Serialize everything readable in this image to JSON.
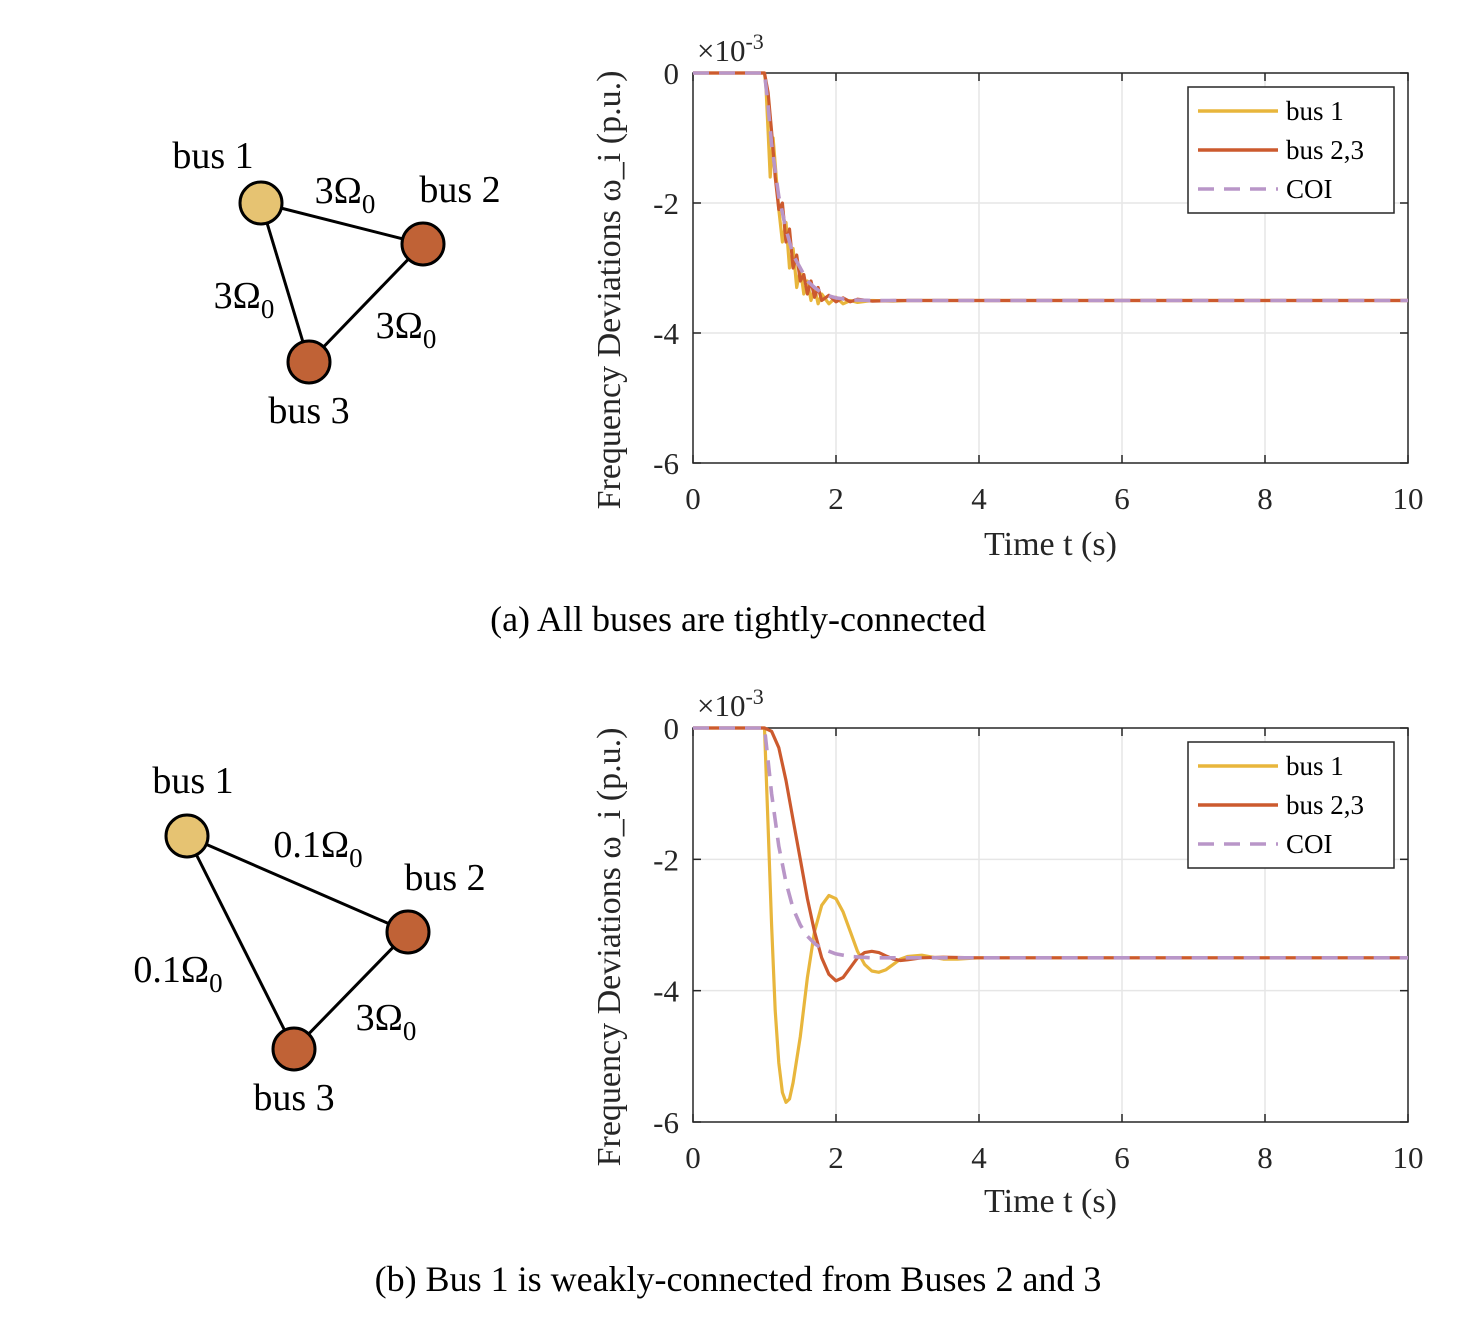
{
  "colors": {
    "bus1": "#e8b63c",
    "bus23": "#cc5a2e",
    "coi": "#b996c8",
    "node1": "#e6c372",
    "node23": "#c06236",
    "grid": "#e6e6e6"
  },
  "panels": [
    {
      "caption": "(a)  All buses are tightly-connected",
      "graph": {
        "nodes": [
          "bus 1",
          "bus 2",
          "bus 3"
        ],
        "edges": [
          {
            "from": "bus 1",
            "to": "bus 2",
            "label": "3Ω",
            "sub": "0"
          },
          {
            "from": "bus 1",
            "to": "bus 3",
            "label": "3Ω",
            "sub": "0"
          },
          {
            "from": "bus 2",
            "to": "bus 3",
            "label": "3Ω",
            "sub": "0"
          }
        ]
      }
    },
    {
      "caption": "(b)  Bus 1 is weakly-connected from Buses 2 and 3",
      "graph": {
        "nodes": [
          "bus 1",
          "bus 2",
          "bus 3"
        ],
        "edges": [
          {
            "from": "bus 1",
            "to": "bus 2",
            "label": "0.1Ω",
            "sub": "0"
          },
          {
            "from": "bus 1",
            "to": "bus 3",
            "label": "0.1Ω",
            "sub": "0"
          },
          {
            "from": "bus 2",
            "to": "bus 3",
            "label": "3Ω",
            "sub": "0"
          }
        ]
      }
    }
  ],
  "chart_data": [
    {
      "type": "line",
      "xlabel": "Time t (s)",
      "ylabel": "Frequency Deviations ω_i (p.u.)",
      "y_exponent": "×10-3",
      "xlim": [
        0,
        10
      ],
      "ylim": [
        -6,
        0
      ],
      "xticks": [
        0,
        2,
        4,
        6,
        8,
        10
      ],
      "yticks": [
        0,
        -2,
        -4,
        -6
      ],
      "grid": true,
      "legend": "top-right",
      "series": [
        {
          "name": "bus 1",
          "style": "solid",
          "x": [
            0,
            1.0,
            1.02,
            1.05,
            1.08,
            1.12,
            1.15,
            1.2,
            1.25,
            1.3,
            1.35,
            1.4,
            1.45,
            1.5,
            1.55,
            1.6,
            1.65,
            1.7,
            1.75,
            1.8,
            1.9,
            2.0,
            2.1,
            2.2,
            2.3,
            2.5,
            2.8,
            3.0,
            10
          ],
          "y": [
            0,
            0,
            -0.2,
            -0.9,
            -1.6,
            -1.0,
            -1.4,
            -2.1,
            -2.6,
            -2.3,
            -3.0,
            -2.7,
            -3.3,
            -3.0,
            -3.4,
            -3.2,
            -3.5,
            -3.3,
            -3.55,
            -3.4,
            -3.55,
            -3.45,
            -3.55,
            -3.5,
            -3.53,
            -3.5,
            -3.51,
            -3.5,
            -3.5
          ]
        },
        {
          "name": "bus 2,3",
          "style": "solid",
          "x": [
            0,
            1.0,
            1.05,
            1.1,
            1.15,
            1.2,
            1.25,
            1.3,
            1.35,
            1.4,
            1.45,
            1.5,
            1.55,
            1.6,
            1.65,
            1.7,
            1.75,
            1.8,
            1.9,
            2.0,
            2.1,
            2.2,
            2.3,
            2.5,
            2.8,
            3.0,
            10
          ],
          "y": [
            0,
            0,
            -0.3,
            -0.9,
            -1.6,
            -2.1,
            -2.0,
            -2.6,
            -2.4,
            -3.0,
            -2.8,
            -3.2,
            -3.1,
            -3.4,
            -3.2,
            -3.45,
            -3.3,
            -3.5,
            -3.42,
            -3.52,
            -3.46,
            -3.52,
            -3.48,
            -3.51,
            -3.5,
            -3.5,
            -3.5
          ]
        },
        {
          "name": "COI",
          "style": "dashed",
          "x": [
            0,
            1.0,
            1.05,
            1.1,
            1.2,
            1.3,
            1.4,
            1.5,
            1.6,
            1.7,
            1.8,
            1.9,
            2.0,
            2.2,
            2.5,
            3.0,
            10
          ],
          "y": [
            0,
            0,
            -0.5,
            -1.1,
            -1.9,
            -2.4,
            -2.8,
            -3.0,
            -3.2,
            -3.3,
            -3.38,
            -3.43,
            -3.46,
            -3.49,
            -3.5,
            -3.5,
            -3.5
          ]
        }
      ]
    },
    {
      "type": "line",
      "xlabel": "Time t (s)",
      "ylabel": "Frequency Deviations ω_i (p.u.)",
      "y_exponent": "×10-3",
      "xlim": [
        0,
        10
      ],
      "ylim": [
        -6,
        0
      ],
      "xticks": [
        0,
        2,
        4,
        6,
        8,
        10
      ],
      "yticks": [
        0,
        -2,
        -4,
        -6
      ],
      "grid": true,
      "legend": "top-right",
      "series": [
        {
          "name": "bus 1",
          "style": "solid",
          "x": [
            0,
            1.0,
            1.05,
            1.1,
            1.15,
            1.2,
            1.25,
            1.3,
            1.35,
            1.4,
            1.5,
            1.6,
            1.7,
            1.8,
            1.9,
            2.0,
            2.1,
            2.2,
            2.3,
            2.4,
            2.5,
            2.6,
            2.7,
            2.8,
            2.9,
            3.0,
            3.2,
            3.4,
            3.5,
            3.7,
            4.0,
            4.5,
            10
          ],
          "y": [
            0,
            0,
            -1.5,
            -3.0,
            -4.3,
            -5.1,
            -5.55,
            -5.7,
            -5.65,
            -5.4,
            -4.7,
            -3.8,
            -3.1,
            -2.7,
            -2.55,
            -2.6,
            -2.8,
            -3.1,
            -3.4,
            -3.6,
            -3.7,
            -3.72,
            -3.68,
            -3.6,
            -3.52,
            -3.48,
            -3.46,
            -3.5,
            -3.52,
            -3.52,
            -3.5,
            -3.5,
            -3.5
          ]
        },
        {
          "name": "bus 2,3",
          "style": "solid",
          "x": [
            0,
            1.0,
            1.1,
            1.2,
            1.3,
            1.4,
            1.5,
            1.6,
            1.7,
            1.8,
            1.9,
            2.0,
            2.1,
            2.2,
            2.3,
            2.4,
            2.5,
            2.6,
            2.7,
            2.8,
            2.9,
            3.0,
            3.2,
            3.5,
            4.0,
            10
          ],
          "y": [
            0,
            0,
            -0.05,
            -0.3,
            -0.8,
            -1.4,
            -2.0,
            -2.6,
            -3.1,
            -3.5,
            -3.75,
            -3.85,
            -3.8,
            -3.65,
            -3.5,
            -3.42,
            -3.4,
            -3.42,
            -3.47,
            -3.52,
            -3.54,
            -3.53,
            -3.5,
            -3.49,
            -3.5,
            -3.5
          ]
        },
        {
          "name": "COI",
          "style": "dashed",
          "x": [
            0,
            1.0,
            1.05,
            1.1,
            1.2,
            1.3,
            1.4,
            1.5,
            1.6,
            1.7,
            1.8,
            2.0,
            2.2,
            2.5,
            3.0,
            10
          ],
          "y": [
            0,
            0,
            -0.5,
            -1.0,
            -1.8,
            -2.35,
            -2.75,
            -3.0,
            -3.17,
            -3.28,
            -3.36,
            -3.44,
            -3.48,
            -3.5,
            -3.5,
            -3.5
          ]
        }
      ]
    }
  ]
}
